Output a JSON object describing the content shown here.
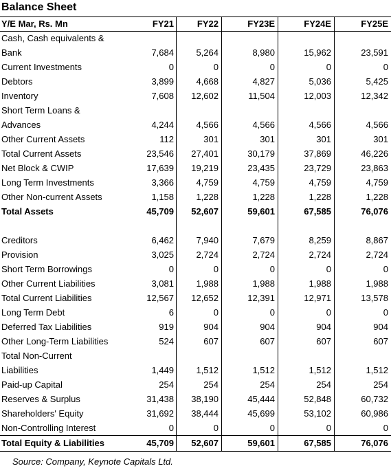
{
  "title": "Balance Sheet",
  "header": {
    "label": "Y/E Mar, Rs. Mn",
    "years": [
      "FY21",
      "FY22",
      "FY23E",
      "FY24E",
      "FY25E"
    ]
  },
  "rows": [
    {
      "label": "Cash, Cash equivalents &",
      "label2": "Bank",
      "values": [
        "7,684",
        "5,264",
        "8,980",
        "15,962",
        "23,591"
      ]
    },
    {
      "label": "Current Investments",
      "values": [
        "0",
        "0",
        "0",
        "0",
        "0"
      ]
    },
    {
      "label": "Debtors",
      "values": [
        "3,899",
        "4,668",
        "4,827",
        "5,036",
        "5,425"
      ]
    },
    {
      "label": "Inventory",
      "values": [
        "7,608",
        "12,602",
        "11,504",
        "12,003",
        "12,342"
      ]
    },
    {
      "label": "Short Term Loans &",
      "label2": "Advances",
      "values": [
        "4,244",
        "4,566",
        "4,566",
        "4,566",
        "4,566"
      ]
    },
    {
      "label": "Other Current Assets",
      "values": [
        "112",
        "301",
        "301",
        "301",
        "301"
      ]
    },
    {
      "label": "Total Current Assets",
      "values": [
        "23,546",
        "27,401",
        "30,179",
        "37,869",
        "46,226"
      ]
    },
    {
      "label": "Net Block & CWIP",
      "values": [
        "17,639",
        "19,219",
        "23,435",
        "23,729",
        "23,863"
      ]
    },
    {
      "label": "Long Term Investments",
      "values": [
        "3,366",
        "4,759",
        "4,759",
        "4,759",
        "4,759"
      ]
    },
    {
      "label": "Other Non-current Assets",
      "values": [
        "1,158",
        "1,228",
        "1,228",
        "1,228",
        "1,228"
      ]
    },
    {
      "label": "Total Assets",
      "values": [
        "45,709",
        "52,607",
        "59,601",
        "67,585",
        "76,076"
      ],
      "bold": true
    },
    {
      "label": "Creditors",
      "values": [
        "6,462",
        "7,940",
        "7,679",
        "8,259",
        "8,867"
      ]
    },
    {
      "label": "Provision",
      "values": [
        "3,025",
        "2,724",
        "2,724",
        "2,724",
        "2,724"
      ]
    },
    {
      "label": "Short Term Borrowings",
      "values": [
        "0",
        "0",
        "0",
        "0",
        "0"
      ]
    },
    {
      "label": "Other Current Liabilities",
      "values": [
        "3,081",
        "1,988",
        "1,988",
        "1,988",
        "1,988"
      ]
    },
    {
      "label": "Total Current Liabilities",
      "values": [
        "12,567",
        "12,652",
        "12,391",
        "12,971",
        "13,578"
      ]
    },
    {
      "label": "Long Term Debt",
      "values": [
        "6",
        "0",
        "0",
        "0",
        "0"
      ]
    },
    {
      "label": "Deferred Tax Liabilities",
      "values": [
        "919",
        "904",
        "904",
        "904",
        "904"
      ]
    },
    {
      "label": "Other Long-Term Liabilities",
      "values": [
        "524",
        "607",
        "607",
        "607",
        "607"
      ]
    },
    {
      "label": "Total Non-Current",
      "label2": "Liabilities",
      "values": [
        "1,449",
        "1,512",
        "1,512",
        "1,512",
        "1,512"
      ]
    },
    {
      "label": "Paid-up Capital",
      "values": [
        "254",
        "254",
        "254",
        "254",
        "254"
      ]
    },
    {
      "label": "Reserves & Surplus",
      "values": [
        "31,438",
        "38,190",
        "45,444",
        "52,848",
        "60,732"
      ]
    },
    {
      "label": "Shareholders' Equity",
      "values": [
        "31,692",
        "38,444",
        "45,699",
        "53,102",
        "60,986"
      ]
    },
    {
      "label": "Non-Controlling Interest",
      "values": [
        "0",
        "0",
        "0",
        "0",
        "0"
      ]
    },
    {
      "label": "Total Equity & Liabilities",
      "values": [
        "45,709",
        "52,607",
        "59,601",
        "67,585",
        "76,076"
      ],
      "bold": true
    }
  ],
  "source": "Source: Company, Keynote Capitals Ltd."
}
